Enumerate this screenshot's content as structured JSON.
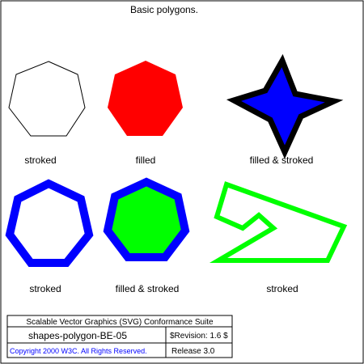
{
  "title": "Basic polygons.",
  "labels": {
    "row1": [
      "stroked",
      "filled",
      "filled & stroked"
    ],
    "row2": [
      "stroked",
      "filled & stroked",
      "stroked"
    ]
  },
  "colors": {
    "red": "#ff0000",
    "blue": "#0000ff",
    "green": "#00ff00",
    "black": "#000000",
    "link_blue": "#0000ff"
  },
  "footer": {
    "suite": "Scalable Vector Graphics (SVG) Conformance Suite",
    "test_name": "shapes-polygon-BE-05",
    "revision": "$Revision: 1.6 $",
    "copyright": "Copyright 2000 W3C. All Rights Reserved.",
    "release": "Release 3.0"
  }
}
